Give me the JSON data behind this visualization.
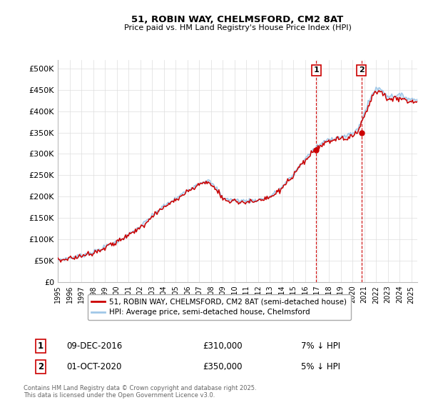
{
  "title_line1": "51, ROBIN WAY, CHELMSFORD, CM2 8AT",
  "title_line2": "Price paid vs. HM Land Registry's House Price Index (HPI)",
  "ylabel_ticks": [
    "£0",
    "£50K",
    "£100K",
    "£150K",
    "£200K",
    "£250K",
    "£300K",
    "£350K",
    "£400K",
    "£450K",
    "£500K"
  ],
  "ytick_values": [
    0,
    50000,
    100000,
    150000,
    200000,
    250000,
    300000,
    350000,
    400000,
    450000,
    500000
  ],
  "ylim": [
    0,
    520000
  ],
  "xlim_start": 1995.0,
  "xlim_end": 2025.5,
  "hpi_color": "#a0c8e8",
  "price_color": "#cc0000",
  "marker1_date_x": 2016.92,
  "marker1_price": 310000,
  "marker2_date_x": 2020.75,
  "marker2_price": 350000,
  "vline_color": "#cc0000",
  "annotation1_text": "1",
  "annotation2_text": "2",
  "legend_label1": "51, ROBIN WAY, CHELMSFORD, CM2 8AT (semi-detached house)",
  "legend_label2": "HPI: Average price, semi-detached house, Chelmsford",
  "table_row1": [
    "1",
    "09-DEC-2016",
    "£310,000",
    "7% ↓ HPI"
  ],
  "table_row2": [
    "2",
    "01-OCT-2020",
    "£350,000",
    "5% ↓ HPI"
  ],
  "footer": "Contains HM Land Registry data © Crown copyright and database right 2025.\nThis data is licensed under the Open Government Licence v3.0.",
  "background_color": "#ffffff",
  "grid_color": "#dddddd",
  "xtick_years": [
    1995,
    1996,
    1997,
    1998,
    1999,
    2000,
    2001,
    2002,
    2003,
    2004,
    2005,
    2006,
    2007,
    2008,
    2009,
    2010,
    2011,
    2012,
    2013,
    2014,
    2015,
    2016,
    2017,
    2018,
    2019,
    2020,
    2021,
    2022,
    2023,
    2024,
    2025
  ]
}
